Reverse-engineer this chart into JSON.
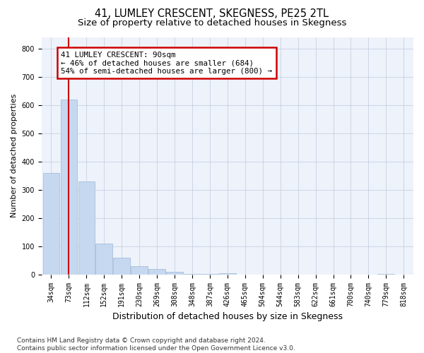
{
  "title": "41, LUMLEY CRESCENT, SKEGNESS, PE25 2TL",
  "subtitle": "Size of property relative to detached houses in Skegness",
  "xlabel": "Distribution of detached houses by size in Skegness",
  "ylabel": "Number of detached properties",
  "categories": [
    "34sqm",
    "73sqm",
    "112sqm",
    "152sqm",
    "191sqm",
    "230sqm",
    "269sqm",
    "308sqm",
    "348sqm",
    "387sqm",
    "426sqm",
    "465sqm",
    "504sqm",
    "544sqm",
    "583sqm",
    "622sqm",
    "661sqm",
    "700sqm",
    "740sqm",
    "779sqm",
    "818sqm"
  ],
  "values": [
    360,
    620,
    330,
    110,
    60,
    30,
    20,
    10,
    2,
    2,
    5,
    0,
    0,
    0,
    0,
    0,
    0,
    0,
    0,
    2,
    0
  ],
  "bar_color": "#c5d8f0",
  "bar_edge_color": "#a8bfd8",
  "highlight_line_color": "#cc0000",
  "highlight_bar_index": 1,
  "annotation_line1": "41 LUMLEY CRESCENT: 90sqm",
  "annotation_line2": "← 46% of detached houses are smaller (684)",
  "annotation_line3": "54% of semi-detached houses are larger (800) →",
  "annotation_box_color": "#ffffff",
  "annotation_box_edge": "#cc0000",
  "ylim": [
    0,
    840
  ],
  "yticks": [
    0,
    100,
    200,
    300,
    400,
    500,
    600,
    700,
    800
  ],
  "footnote": "Contains HM Land Registry data © Crown copyright and database right 2024.\nContains public sector information licensed under the Open Government Licence v3.0.",
  "bg_color": "#eef2fa",
  "title_fontsize": 10.5,
  "subtitle_fontsize": 9.5,
  "ylabel_fontsize": 8,
  "xlabel_fontsize": 9,
  "tick_fontsize": 7,
  "footnote_fontsize": 6.5
}
